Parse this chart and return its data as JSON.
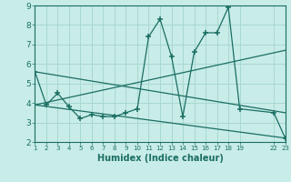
{
  "xlabel": "Humidex (Indice chaleur)",
  "bg_color": "#c8ece8",
  "grid_color": "#a8d8d0",
  "line_color": "#1a6e62",
  "ylim": [
    2,
    9
  ],
  "xlim": [
    1,
    23
  ],
  "yticks": [
    2,
    3,
    4,
    5,
    6,
    7,
    8,
    9
  ],
  "xtick_positions": [
    1,
    2,
    3,
    4,
    5,
    6,
    7,
    8,
    9,
    10,
    11,
    12,
    13,
    14,
    15,
    16,
    17,
    18,
    19,
    22,
    23
  ],
  "xtick_labels": [
    "1",
    "2",
    "3",
    "4",
    "5",
    "6",
    "7",
    "8",
    "9",
    "10",
    "11",
    "12",
    "13",
    "14",
    "15",
    "16",
    "17",
    "18",
    "19",
    "22",
    "23"
  ],
  "series_main_x": [
    1,
    2,
    3,
    4,
    5,
    6,
    7,
    8,
    9,
    10,
    11,
    12,
    13,
    14,
    15,
    16,
    17,
    18,
    19,
    22,
    23
  ],
  "series_main_y": [
    5.6,
    3.9,
    4.5,
    3.8,
    3.2,
    3.4,
    3.3,
    3.3,
    3.5,
    3.7,
    7.4,
    8.3,
    6.4,
    3.3,
    6.6,
    7.6,
    7.6,
    8.9,
    3.7,
    3.5,
    2.2
  ],
  "line1_x": [
    1,
    23
  ],
  "line1_y": [
    5.6,
    3.5
  ],
  "line2_x": [
    1,
    23
  ],
  "line2_y": [
    3.9,
    2.2
  ],
  "line3_x": [
    1,
    23
  ],
  "line3_y": [
    3.9,
    6.7
  ]
}
